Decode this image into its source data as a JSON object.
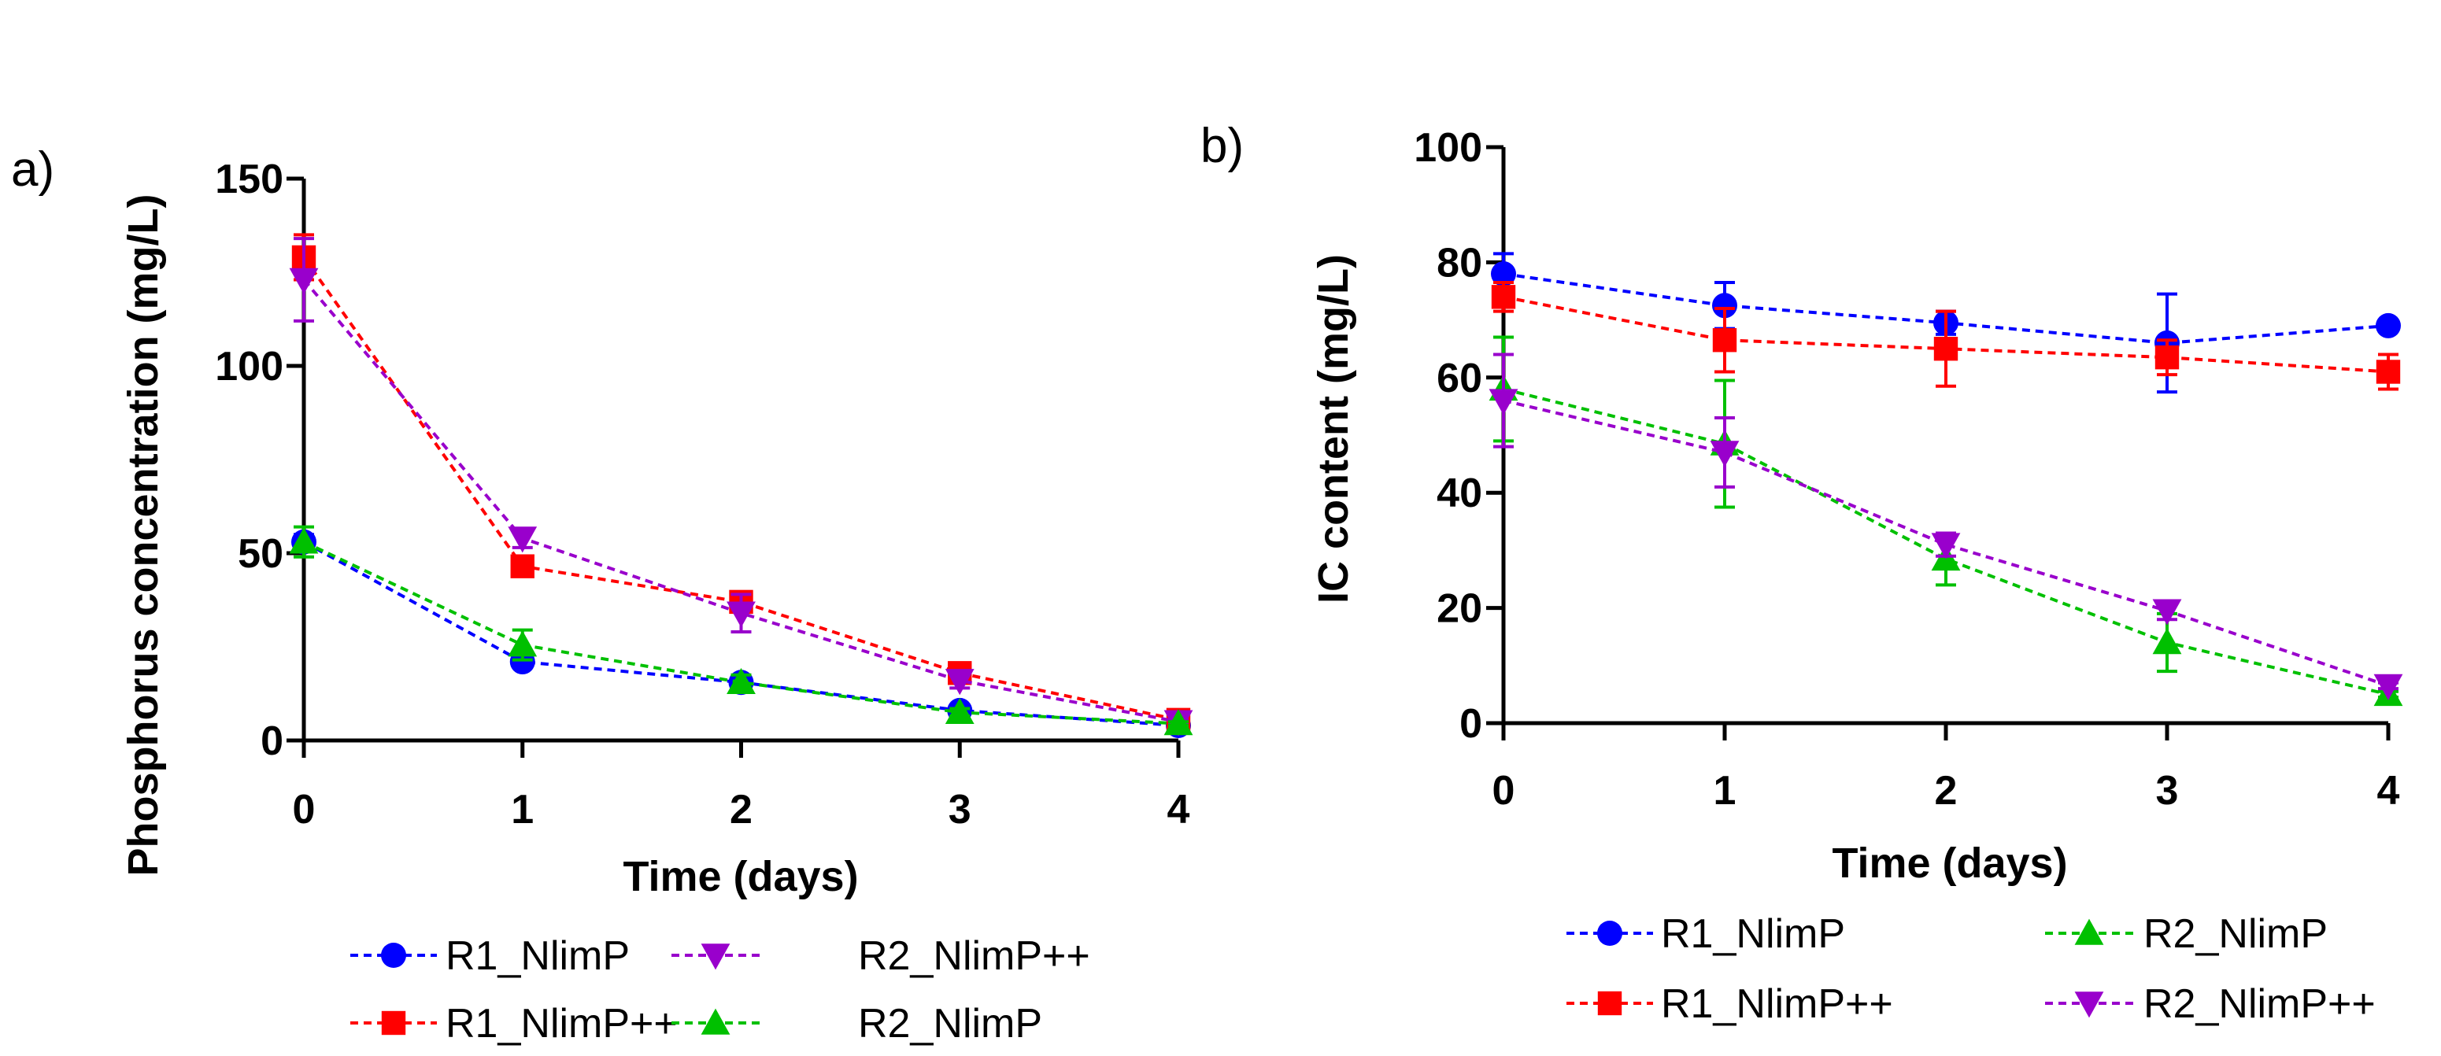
{
  "colors": {
    "R1_NlimP": "#0000ff",
    "R1_NlimP++": "#ff0000",
    "R2_NlimP": "#00c000",
    "R2_NlimP++": "#9900cc"
  },
  "chart_data": [
    {
      "type": "line",
      "panel_label": "a)",
      "title": "",
      "xlabel": "Time (days)",
      "ylabel": "Phosphorus concentration (mg/L)",
      "xlim": [
        0,
        4
      ],
      "ylim": [
        0,
        150
      ],
      "xticks": [
        "0",
        "1",
        "2",
        "3",
        "4"
      ],
      "yticks": [
        "0",
        "50",
        "100",
        "150"
      ],
      "x": [
        0,
        1,
        2,
        3,
        4
      ],
      "legend_position": "bottom",
      "series": [
        {
          "name": "R1_NlimP",
          "marker": "circle",
          "values": [
            53,
            21,
            15.5,
            8,
            4
          ],
          "errors": [
            2,
            1.5,
            1.5,
            1,
            0.5
          ]
        },
        {
          "name": "R1_NlimP++",
          "marker": "square",
          "values": [
            129,
            46.5,
            37,
            18,
            5.5
          ],
          "errors": [
            6,
            2.5,
            2.5,
            2,
            0.5
          ]
        },
        {
          "name": "R2_NlimP++",
          "marker": "triangle-down",
          "values": [
            123,
            54,
            34,
            16,
            5
          ],
          "errors": [
            11,
            2.5,
            5,
            2,
            0.5
          ]
        },
        {
          "name": "R2_NlimP",
          "marker": "triangle-up",
          "values": [
            53,
            25.5,
            15.5,
            7.5,
            4.5
          ],
          "errors": [
            4,
            4,
            2,
            1,
            0.5
          ]
        }
      ],
      "legend_order": [
        "R1_NlimP",
        "R2_NlimP++",
        "R1_NlimP++",
        "R2_NlimP"
      ]
    },
    {
      "type": "line",
      "panel_label": "b)",
      "title": "",
      "xlabel": "Time (days)",
      "ylabel": "IC content (mg/L)",
      "xlim": [
        0,
        4
      ],
      "ylim": [
        0,
        100
      ],
      "xticks": [
        "0",
        "1",
        "2",
        "3",
        "4"
      ],
      "yticks": [
        "0",
        "20",
        "40",
        "60",
        "80",
        "100"
      ],
      "x": [
        0,
        1,
        2,
        3,
        4
      ],
      "legend_position": "bottom",
      "series": [
        {
          "name": "R1_NlimP",
          "marker": "circle",
          "values": [
            78,
            72.5,
            69.5,
            66,
            69
          ],
          "errors": [
            3.5,
            4,
            2,
            8.5,
            0
          ]
        },
        {
          "name": "R1_NlimP++",
          "marker": "square",
          "values": [
            74,
            66.5,
            65,
            63.5,
            61
          ],
          "errors": [
            2.5,
            5.5,
            6.5,
            3,
            3
          ]
        },
        {
          "name": "R2_NlimP",
          "marker": "triangle-up",
          "values": [
            58,
            48.5,
            28.5,
            14,
            5
          ],
          "errors": [
            9,
            11,
            4.5,
            5,
            0.5
          ]
        },
        {
          "name": "R2_NlimP++",
          "marker": "triangle-down",
          "values": [
            56,
            47,
            31,
            19.5,
            6.5
          ],
          "errors": [
            8,
            6,
            2,
            1.5,
            0.5
          ]
        }
      ],
      "legend_order": [
        "R1_NlimP",
        "R2_NlimP",
        "R1_NlimP++",
        "R2_NlimP++"
      ]
    }
  ]
}
